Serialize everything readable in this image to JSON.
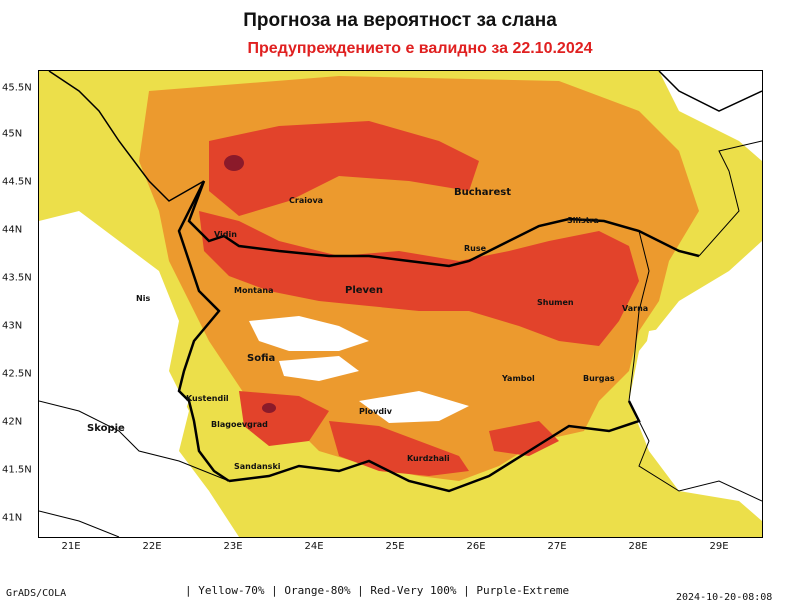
{
  "header": {
    "title": "Прогноза на вероятност за слана",
    "subtitle": "Предупреждението е валидно за 22.10.2024"
  },
  "map": {
    "lat_ticks": [
      "45.5N",
      "45N",
      "44.5N",
      "44N",
      "43.5N",
      "43N",
      "42.5N",
      "42N",
      "41.5N",
      "41N"
    ],
    "lon_ticks": [
      "21E",
      "22E",
      "23E",
      "24E",
      "25E",
      "26E",
      "27E",
      "28E",
      "29E"
    ],
    "cities": [
      {
        "name": "Craiova",
        "key": "craiova"
      },
      {
        "name": "Bucharest",
        "key": "bucharest"
      },
      {
        "name": "Silistra",
        "key": "silistra"
      },
      {
        "name": "Vidin",
        "key": "vidin"
      },
      {
        "name": "Ruse",
        "key": "ruse"
      },
      {
        "name": "Nis",
        "key": "nis"
      },
      {
        "name": "Montana",
        "key": "montana"
      },
      {
        "name": "Pleven",
        "key": "pleven"
      },
      {
        "name": "Shumen",
        "key": "shumen"
      },
      {
        "name": "Varna",
        "key": "varna"
      },
      {
        "name": "Sofia",
        "key": "sofia"
      },
      {
        "name": "Yambol",
        "key": "yambol"
      },
      {
        "name": "Burgas",
        "key": "burgas"
      },
      {
        "name": "Kustendil",
        "key": "kustendil"
      },
      {
        "name": "Skopje",
        "key": "skopje"
      },
      {
        "name": "Plovdiv",
        "key": "plovdiv"
      },
      {
        "name": "Blagoevgrad",
        "key": "blagoevgrad"
      },
      {
        "name": "Kurdzhali",
        "key": "kurdzhali"
      },
      {
        "name": "Sandanski",
        "key": "sandanski"
      }
    ],
    "colors": {
      "yellow": "#ecdf4a",
      "orange": "#ec9a2e",
      "red": "#e2432b",
      "purple": "#8b1a2a",
      "border": "#000000"
    }
  },
  "footer": {
    "left": "GrADS/COLA",
    "legend": "| Yellow-70% | Orange-80% | Red-Very 100% | Purple-Extreme",
    "right": "2024-10-20-08:08"
  }
}
